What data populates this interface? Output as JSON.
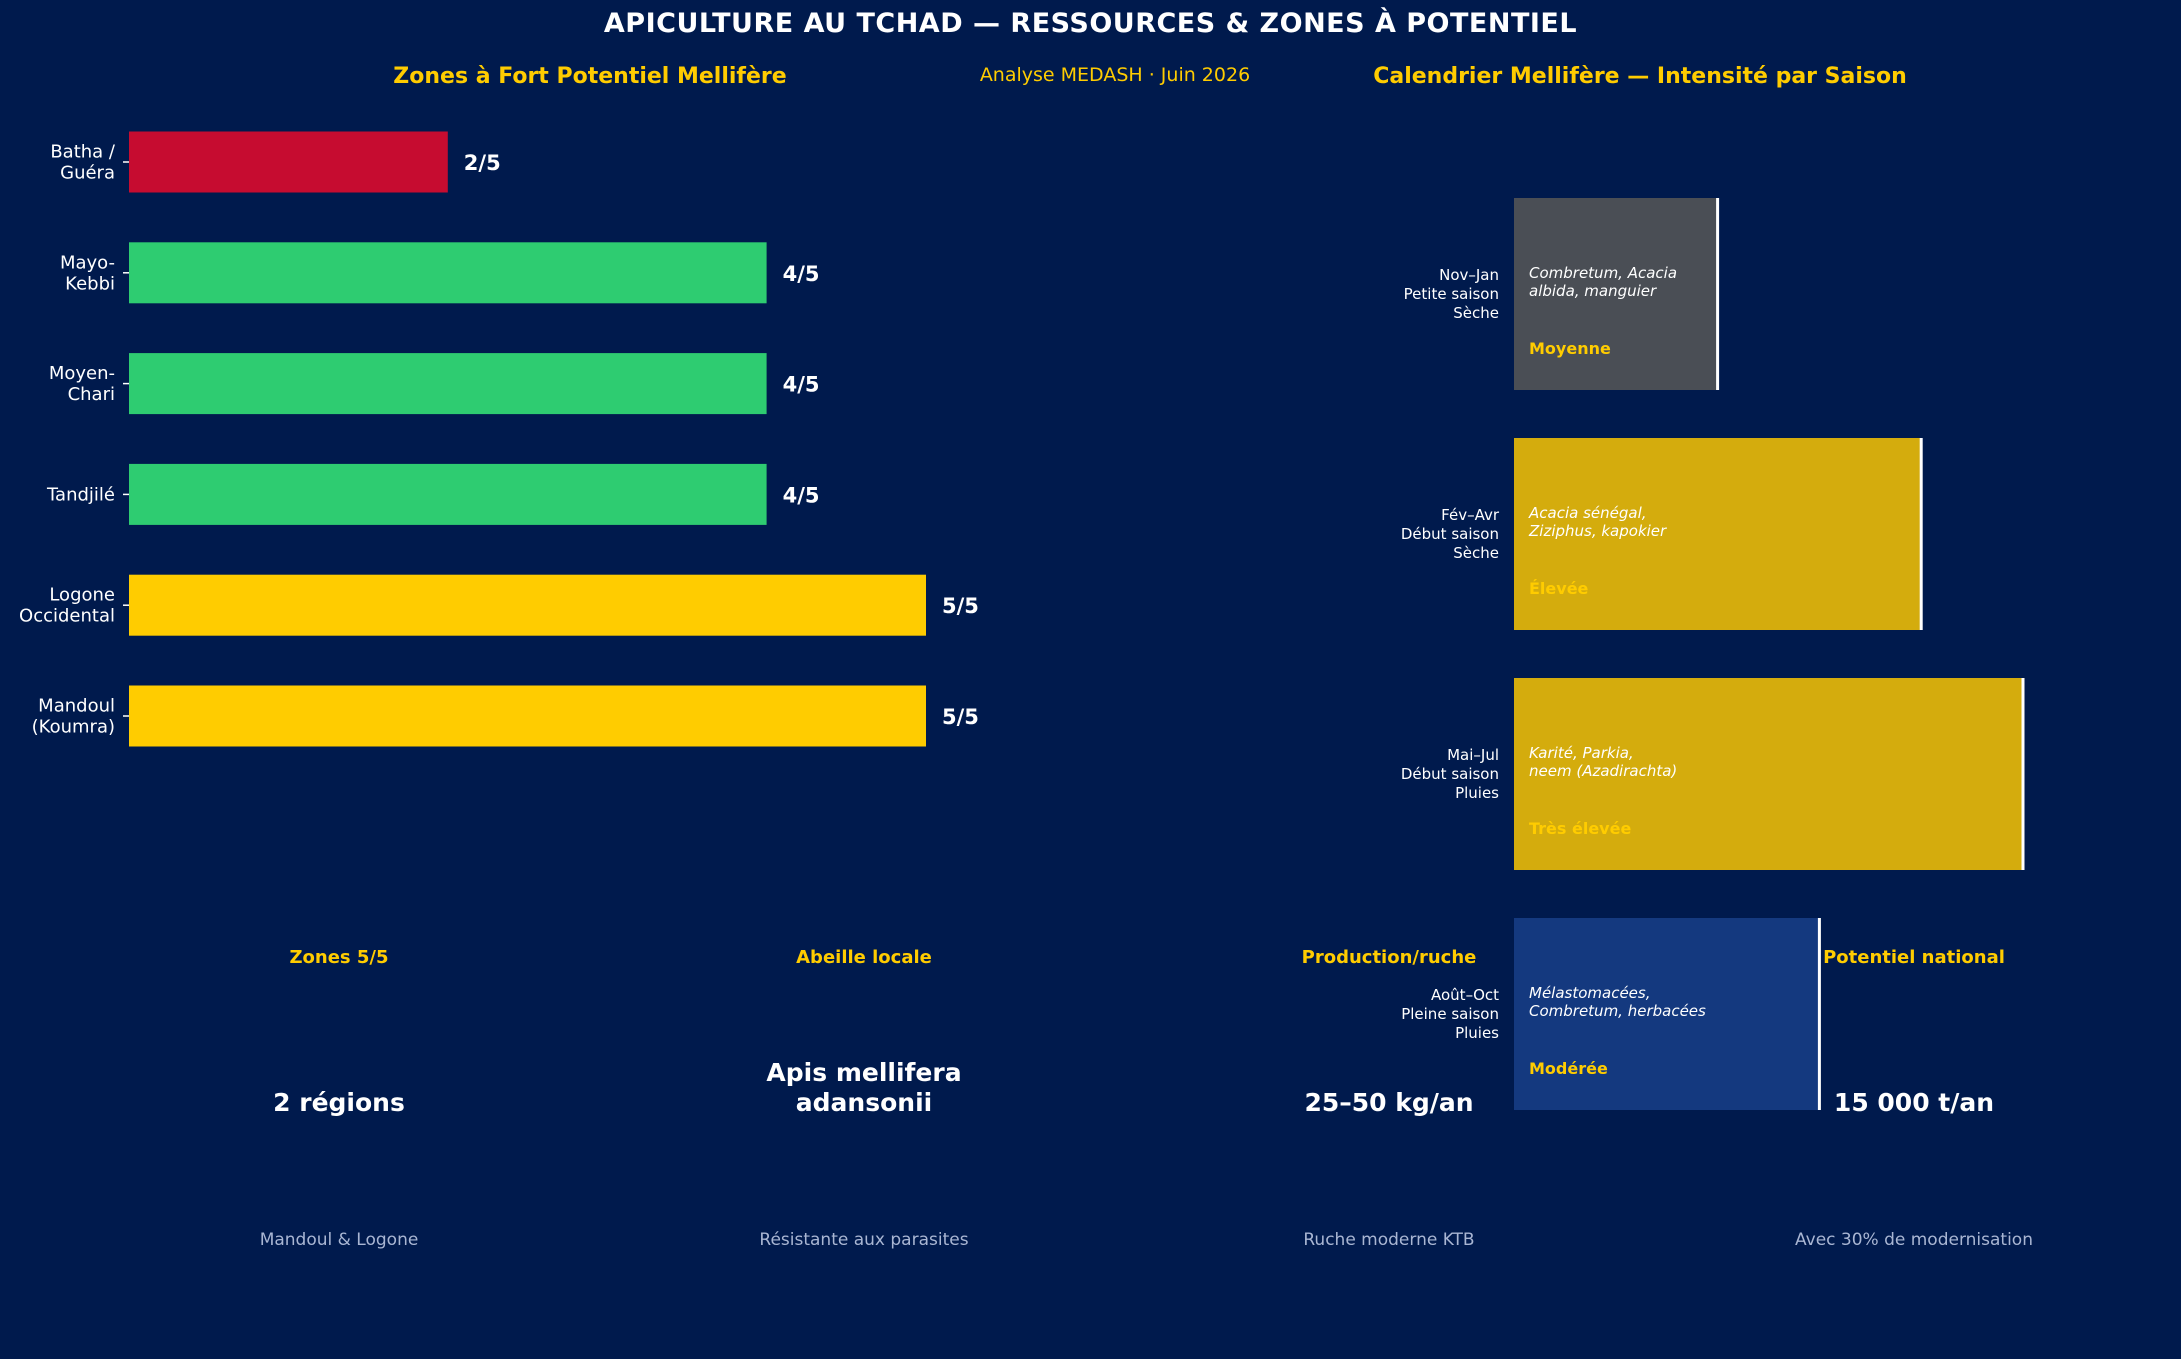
{
  "header": {
    "title": "APICULTURE AU TCHAD — RESSOURCES & ZONES À POTENTIEL",
    "subtitle": "Analyse MEDASH · Juin 2026"
  },
  "chart_data": [
    {
      "type": "bar",
      "orientation": "horizontal",
      "title": "Zones à Fort Potentiel Mellifère",
      "categories": [
        [
          "Batha /",
          "Guéra"
        ],
        [
          "Mayo-",
          "Kebbi"
        ],
        [
          "Moyen-",
          "Chari"
        ],
        [
          "Tandjilé"
        ],
        [
          "Logone",
          "Occidental"
        ],
        [
          "Mandoul",
          "(Koumra)"
        ]
      ],
      "values": [
        2,
        4,
        4,
        4,
        5,
        5
      ],
      "value_labels": [
        "2/5",
        "4/5",
        "4/5",
        "4/5",
        "5/5",
        "5/5"
      ],
      "colors": [
        "#c60c30",
        "#2ecc71",
        "#2ecc71",
        "#2ecc71",
        "#ffcc00",
        "#ffcc00"
      ],
      "xlim": [
        0,
        6
      ],
      "grid": false
    },
    {
      "type": "bar",
      "orientation": "horizontal",
      "title": "Calendrier Mellifère — Intensité par Saison",
      "categories": [
        [
          "Nov–Jan",
          "Petite saison",
          "Sèche"
        ],
        [
          "Fév–Avr",
          "Début saison",
          "Sèche"
        ],
        [
          "Mai–Jul",
          "Début saison",
          "Pluies"
        ],
        [
          "Août–Oct",
          "Pleine saison",
          "Pluies"
        ]
      ],
      "values": [
        2,
        4,
        5,
        3
      ],
      "xlim": [
        0,
        6
      ],
      "colors": [
        "#4a4e55",
        "#d4ac0d",
        "#d4ac0d",
        "#14397f"
      ],
      "flora": [
        [
          "Combretum, Acacia",
          "albida, manguier"
        ],
        [
          "Acacia sénégal,",
          "Ziziphus, kapokier"
        ],
        [
          "Karité, Parkia,",
          "neem (Azadirachta)"
        ],
        [
          "Mélastomacées,",
          "Combretum, herbacées"
        ]
      ],
      "intensity": [
        "Moyenne",
        "Élevée",
        "Très élevée",
        "Modérée"
      ],
      "grid": false
    }
  ],
  "kpis": [
    {
      "label": "Zones 5/5",
      "value": [
        "2 régions"
      ],
      "note": "Mandoul & Logone"
    },
    {
      "label": "Abeille locale",
      "value": [
        "Apis mellifera",
        "adansonii"
      ],
      "note": "Résistante aux parasites"
    },
    {
      "label": "Production/ruche",
      "value": [
        "25–50 kg/an"
      ],
      "note": "Ruche moderne KTB"
    },
    {
      "label": "Potentiel national",
      "value": [
        "15 000 t/an"
      ],
      "note": "Avec 30% de modernisation"
    }
  ],
  "colors": {
    "background": "#001a4d",
    "accent": "#ffcc00",
    "text": "#ffffff",
    "muted": "#a9b6d3"
  }
}
